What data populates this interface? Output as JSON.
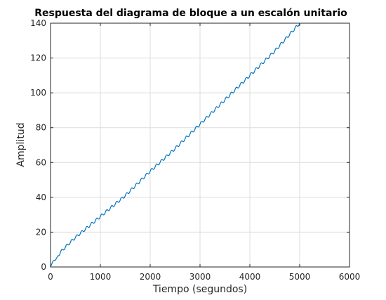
{
  "chart_data": {
    "type": "line",
    "title": "Respuesta del diagrama de bloque a un escalón unitario",
    "xlabel": "Tiempo (segundos)",
    "ylabel": "Amplitud",
    "xlim": [
      0,
      6000
    ],
    "ylim": [
      0,
      140
    ],
    "xticks": [
      0,
      1000,
      2000,
      3000,
      4000,
      5000,
      6000
    ],
    "yticks": [
      0,
      20,
      40,
      60,
      80,
      100,
      120,
      140
    ],
    "xtick_labels": [
      "0",
      "1000",
      "2000",
      "3000",
      "4000",
      "5000",
      "6000"
    ],
    "ytick_labels": [
      "0",
      "20",
      "40",
      "60",
      "80",
      "100",
      "120",
      "140"
    ],
    "grid": true,
    "series": [
      {
        "color": "#0072bd",
        "x": [
          0,
          50,
          100,
          150,
          200,
          300,
          500,
          1000,
          1500,
          2000,
          2500,
          3000,
          3500,
          4000,
          4500,
          5000
        ],
        "y": [
          0,
          3.5,
          4,
          6.5,
          8.5,
          11.5,
          17,
          29,
          41,
          55,
          68,
          82,
          96,
          110,
          124,
          140
        ]
      }
    ]
  }
}
